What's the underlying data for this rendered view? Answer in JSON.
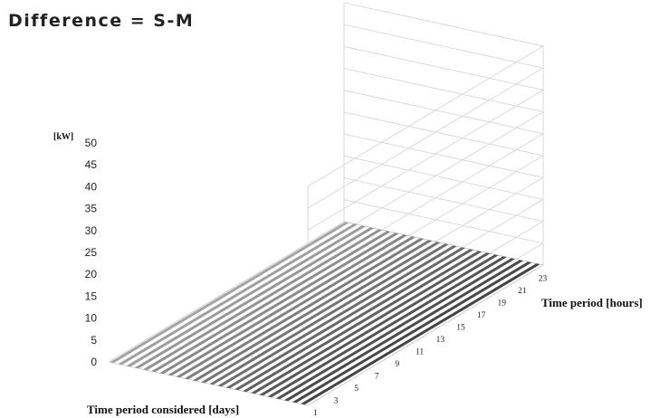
{
  "chart_data": {
    "type": "surface-3d",
    "title": "Difference = S-M",
    "zlabel": "[kW]",
    "xlabel": "Time period considered [days]",
    "ylabel": "Time period [hours]",
    "zlim": [
      0,
      50
    ],
    "z_ticks": [
      "0",
      "5",
      "10",
      "15",
      "20",
      "25",
      "30",
      "35",
      "40",
      "45",
      "50"
    ],
    "x_ticks": [
      "1",
      "3",
      "5",
      "7",
      "9",
      "11",
      "13",
      "15",
      "17",
      "19",
      "21",
      "23"
    ],
    "x_days_count": 24,
    "hours_count": 24,
    "z_values_all_near": 0,
    "grid": true,
    "palette": [
      "#9a9a9a",
      "#555555"
    ]
  }
}
